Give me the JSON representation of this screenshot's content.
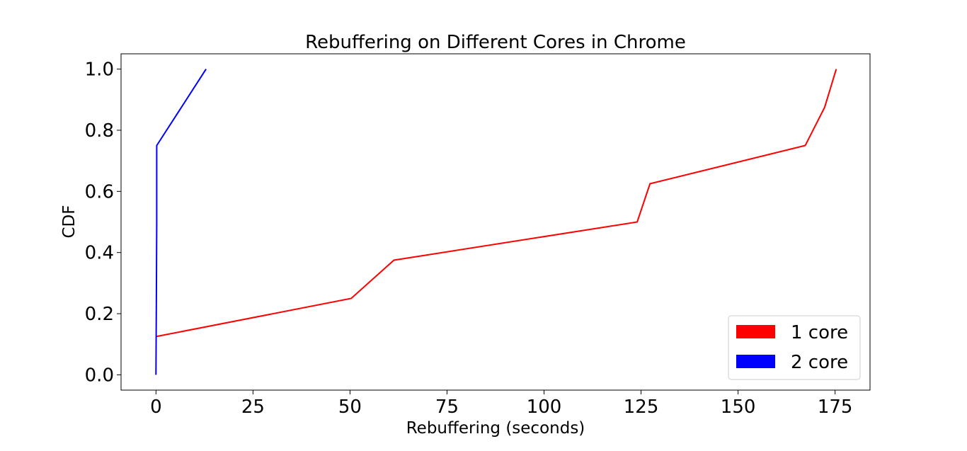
{
  "chart_data": {
    "type": "line",
    "title": "Rebuffering on Different Cores in Chrome",
    "xlabel": "Rebuffering (seconds)",
    "ylabel": "CDF",
    "xlim": [
      -9,
      184
    ],
    "ylim": [
      -0.05,
      1.05
    ],
    "xticks": [
      0,
      25,
      50,
      75,
      100,
      125,
      150,
      175
    ],
    "xtick_labels": [
      "0",
      "25",
      "50",
      "75",
      "100",
      "125",
      "150",
      "175"
    ],
    "yticks": [
      0.0,
      0.2,
      0.4,
      0.6,
      0.8,
      1.0
    ],
    "ytick_labels": [
      "0.0",
      "0.2",
      "0.4",
      "0.6",
      "0.8",
      "1.0"
    ],
    "grid": false,
    "legend_position": "lower-right",
    "series": [
      {
        "name": "1 core",
        "color": "#ff0000",
        "x": [
          0,
          50.3,
          61.3,
          124.0,
          127.3,
          167.3,
          172.3,
          175.3
        ],
        "y": [
          0.125,
          0.25,
          0.375,
          0.5,
          0.625,
          0.75,
          0.875,
          1.0
        ]
      },
      {
        "name": "2 core",
        "color": "#0000ff",
        "x": [
          0,
          0.1,
          0.2,
          0.2,
          12.9
        ],
        "y": [
          0.0,
          0.25,
          0.5,
          0.75,
          1.0
        ]
      }
    ]
  }
}
